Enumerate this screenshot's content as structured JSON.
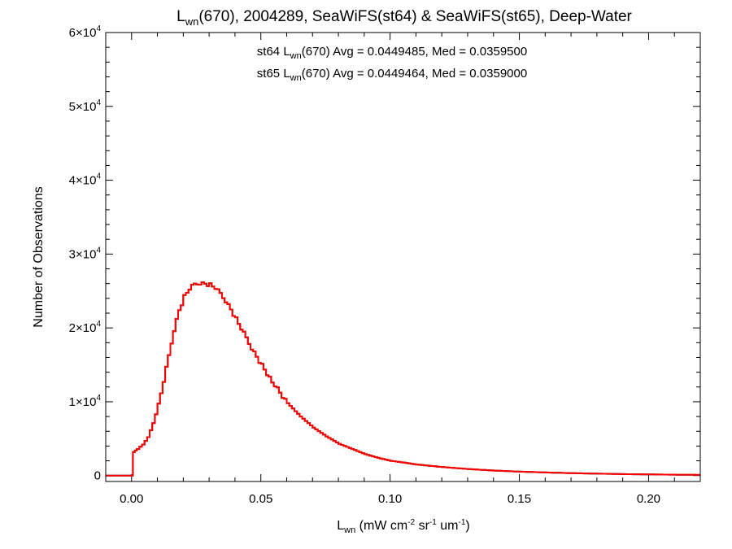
{
  "chart_data": {
    "type": "line",
    "drawstyle": "steps",
    "title": {
      "prefix": "L",
      "sub": "wn",
      "suffix": "(670), 2004289, SeaWiFS(st64) & SeaWiFS(st65), Deep-Water"
    },
    "xlabel": {
      "prefix": "L",
      "sub": "wn",
      "mid1": " (mW cm",
      "sup1": "-2",
      "mid2": " sr",
      "sup2": "-1",
      "mid3": " um",
      "sup3": "-1",
      "suffix": ")"
    },
    "ylabel": "Number of Observations",
    "xlim": [
      -0.01,
      0.22
    ],
    "ylim": [
      -800,
      60000
    ],
    "xticks": [
      {
        "value": 0.0,
        "label": "0.00"
      },
      {
        "value": 0.05,
        "label": "0.05"
      },
      {
        "value": 0.1,
        "label": "0.10"
      },
      {
        "value": 0.15,
        "label": "0.15"
      },
      {
        "value": 0.2,
        "label": "0.20"
      }
    ],
    "yticks": [
      {
        "value": 0,
        "mant": "0",
        "exp": ""
      },
      {
        "value": 10000,
        "mant": "1×10",
        "exp": "4"
      },
      {
        "value": 20000,
        "mant": "2×10",
        "exp": "4"
      },
      {
        "value": 30000,
        "mant": "3×10",
        "exp": "4"
      },
      {
        "value": 40000,
        "mant": "4×10",
        "exp": "4"
      },
      {
        "value": 50000,
        "mant": "5×10",
        "exp": "4"
      },
      {
        "value": 60000,
        "mant": "6×10",
        "exp": "4"
      }
    ],
    "annotations": [
      {
        "prefix": "st64 L",
        "sub": "wn",
        "suffix": "(670) Avg = 0.0449485, Med = 0.0359500",
        "color": "#000000"
      },
      {
        "prefix": "st65 L",
        "sub": "wn",
        "suffix": "(670) Avg = 0.0449464, Med = 0.0359000",
        "color": "#ff0000"
      }
    ],
    "grid": false,
    "series": [
      {
        "name": "st64",
        "color": "#000000",
        "x": [
          -0.01,
          0.0,
          0.0005,
          0.002,
          0.004,
          0.006,
          0.008,
          0.01,
          0.012,
          0.014,
          0.016,
          0.018,
          0.02,
          0.022,
          0.024,
          0.026,
          0.028,
          0.03,
          0.032,
          0.034,
          0.036,
          0.038,
          0.04,
          0.042,
          0.044,
          0.046,
          0.048,
          0.05,
          0.055,
          0.06,
          0.065,
          0.07,
          0.075,
          0.08,
          0.085,
          0.09,
          0.095,
          0.1,
          0.11,
          0.12,
          0.13,
          0.14,
          0.15,
          0.16,
          0.17,
          0.18,
          0.19,
          0.2,
          0.21,
          0.22
        ],
        "y": [
          0,
          0,
          3200,
          3600,
          4200,
          5200,
          7100,
          9500,
          12800,
          16200,
          19800,
          22400,
          24200,
          25300,
          25900,
          26100,
          26000,
          25800,
          25400,
          24600,
          23700,
          22500,
          21200,
          19900,
          18600,
          17300,
          16100,
          14900,
          12200,
          9800,
          8000,
          6500,
          5300,
          4300,
          3600,
          2900,
          2400,
          2000,
          1500,
          1150,
          880,
          680,
          530,
          420,
          330,
          260,
          200,
          160,
          120,
          90
        ]
      },
      {
        "name": "st65",
        "color": "#ff0000",
        "x": [
          -0.01,
          0.0,
          0.0005,
          0.002,
          0.004,
          0.006,
          0.008,
          0.01,
          0.012,
          0.014,
          0.016,
          0.018,
          0.02,
          0.022,
          0.024,
          0.026,
          0.028,
          0.03,
          0.032,
          0.034,
          0.036,
          0.038,
          0.04,
          0.042,
          0.044,
          0.046,
          0.048,
          0.05,
          0.055,
          0.06,
          0.065,
          0.07,
          0.075,
          0.08,
          0.085,
          0.09,
          0.095,
          0.1,
          0.11,
          0.12,
          0.13,
          0.14,
          0.15,
          0.16,
          0.17,
          0.18,
          0.19,
          0.2,
          0.21,
          0.22
        ],
        "y": [
          0,
          0,
          3200,
          3600,
          4200,
          5200,
          7100,
          9500,
          12800,
          16200,
          19800,
          22400,
          24200,
          25300,
          25900,
          26100,
          26000,
          25800,
          25400,
          24600,
          23700,
          22500,
          21200,
          19900,
          18600,
          17300,
          16100,
          14900,
          12200,
          9800,
          8000,
          6500,
          5300,
          4300,
          3600,
          2900,
          2400,
          2000,
          1500,
          1150,
          880,
          680,
          530,
          420,
          330,
          260,
          200,
          160,
          120,
          90
        ]
      }
    ]
  }
}
